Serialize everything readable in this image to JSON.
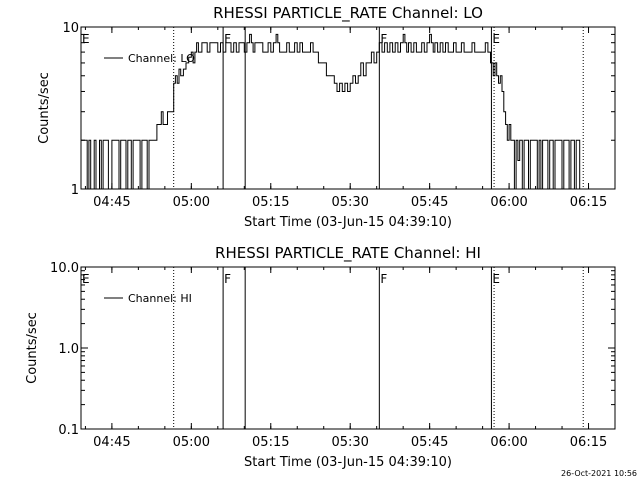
{
  "footer_timestamp": "26-Oct-2021 10:56",
  "chart_data": [
    {
      "type": "line",
      "title": "RHESSI PARTICLE_RATE Channel: LO",
      "xlabel": "Start Time (03-Jun-15 04:39:10)",
      "ylabel": "Counts/sec",
      "yscale": "log",
      "xlim": [
        "04:39:10",
        "06:20:00"
      ],
      "ylim": [
        1,
        10
      ],
      "x_ticks": [
        "04:45",
        "05:00",
        "05:15",
        "05:30",
        "05:45",
        "06:00",
        "06:15"
      ],
      "y_ticks": [
        "1",
        "10"
      ],
      "legend": {
        "placement": "top-left",
        "entries": [
          "Channel: LO"
        ]
      },
      "markers": [
        {
          "time": "04:39:10",
          "label": "E",
          "style": "solid"
        },
        {
          "time": "04:56:40",
          "label": "",
          "style": "dotted"
        },
        {
          "time": "05:06:00",
          "label": "F",
          "style": "solid"
        },
        {
          "time": "05:10:10",
          "label": "",
          "style": "solid"
        },
        {
          "time": "05:35:30",
          "label": "F",
          "style": "solid"
        },
        {
          "time": "05:56:40",
          "label": "E",
          "style": "solid"
        },
        {
          "time": "05:57:10",
          "label": "",
          "style": "dotted"
        },
        {
          "time": "06:14:00",
          "label": "",
          "style": "dotted"
        }
      ],
      "series": [
        {
          "points": [
            [
              "04:39:10",
              2
            ],
            [
              "04:40:00",
              2
            ],
            [
              "04:40:20",
              1
            ],
            [
              "04:40:40",
              2
            ],
            [
              "04:41:00",
              1
            ],
            [
              "04:41:40",
              2
            ],
            [
              "04:42:00",
              1
            ],
            [
              "04:42:40",
              2
            ],
            [
              "04:43:00",
              1
            ],
            [
              "04:43:20",
              2
            ],
            [
              "04:44:00",
              2
            ],
            [
              "04:44:20",
              1
            ],
            [
              "04:45:00",
              2
            ],
            [
              "04:46:00",
              2
            ],
            [
              "04:46:20",
              1
            ],
            [
              "04:46:40",
              2
            ],
            [
              "04:47:40",
              1
            ],
            [
              "04:48:00",
              2
            ],
            [
              "04:48:40",
              1
            ],
            [
              "04:49:00",
              2
            ],
            [
              "04:50:00",
              2
            ],
            [
              "04:50:20",
              1
            ],
            [
              "04:50:40",
              2
            ],
            [
              "04:51:40",
              1
            ],
            [
              "04:52:00",
              2
            ],
            [
              "04:53:00",
              2
            ],
            [
              "04:53:30",
              2.5
            ],
            [
              "04:54:00",
              2.5
            ],
            [
              "04:54:20",
              3
            ],
            [
              "04:54:40",
              2.5
            ],
            [
              "04:55:00",
              2.5
            ],
            [
              "04:55:30",
              3
            ],
            [
              "04:56:00",
              3
            ],
            [
              "04:56:40",
              4.5
            ],
            [
              "04:57:00",
              5
            ],
            [
              "04:57:20",
              4.5
            ],
            [
              "04:57:40",
              5.5
            ],
            [
              "04:58:00",
              5
            ],
            [
              "04:58:30",
              5.5
            ],
            [
              "04:59:00",
              6
            ],
            [
              "04:59:30",
              6.5
            ],
            [
              "05:00:00",
              7
            ],
            [
              "05:00:20",
              6
            ],
            [
              "05:00:40",
              7
            ],
            [
              "05:01:00",
              8
            ],
            [
              "05:01:20",
              7
            ],
            [
              "05:02:00",
              8
            ],
            [
              "05:02:30",
              8
            ],
            [
              "05:03:00",
              7
            ],
            [
              "05:03:30",
              8
            ],
            [
              "05:04:00",
              8
            ],
            [
              "05:04:30",
              8
            ],
            [
              "05:05:00",
              7
            ],
            [
              "05:05:30",
              8
            ],
            [
              "05:06:00",
              7
            ],
            [
              "05:06:30",
              8
            ],
            [
              "05:07:00",
              8
            ],
            [
              "05:07:30",
              7
            ],
            [
              "05:08:00",
              8
            ],
            [
              "05:08:30",
              7
            ],
            [
              "05:09:00",
              8
            ],
            [
              "05:09:30",
              8
            ],
            [
              "05:10:00",
              7
            ],
            [
              "05:10:30",
              8
            ],
            [
              "05:11:00",
              9
            ],
            [
              "05:11:20",
              8
            ],
            [
              "05:11:40",
              7
            ],
            [
              "05:12:00",
              8
            ],
            [
              "05:13:00",
              8
            ],
            [
              "05:13:30",
              7
            ],
            [
              "05:14:00",
              7
            ],
            [
              "05:14:30",
              8
            ],
            [
              "05:15:00",
              7
            ],
            [
              "05:15:30",
              8
            ],
            [
              "05:16:00",
              9
            ],
            [
              "05:16:20",
              8
            ],
            [
              "05:16:40",
              7
            ],
            [
              "05:17:00",
              7
            ],
            [
              "05:18:00",
              8
            ],
            [
              "05:18:30",
              7
            ],
            [
              "05:19:00",
              7
            ],
            [
              "05:19:30",
              8
            ],
            [
              "05:20:00",
              7
            ],
            [
              "05:20:30",
              8
            ],
            [
              "05:21:00",
              7
            ],
            [
              "05:22:00",
              7
            ],
            [
              "05:22:30",
              8
            ],
            [
              "05:23:00",
              7
            ],
            [
              "05:23:30",
              7
            ],
            [
              "05:24:00",
              6
            ],
            [
              "05:24:30",
              6
            ],
            [
              "05:25:00",
              6
            ],
            [
              "05:25:30",
              5
            ],
            [
              "05:26:00",
              5
            ],
            [
              "05:26:30",
              5
            ],
            [
              "05:27:00",
              4.5
            ],
            [
              "05:27:30",
              4
            ],
            [
              "05:28:00",
              4.5
            ],
            [
              "05:28:30",
              4
            ],
            [
              "05:29:00",
              4.5
            ],
            [
              "05:29:30",
              4
            ],
            [
              "05:30:00",
              4.5
            ],
            [
              "05:30:30",
              5
            ],
            [
              "05:31:00",
              4.5
            ],
            [
              "05:31:30",
              5
            ],
            [
              "05:32:00",
              6
            ],
            [
              "05:32:30",
              5
            ],
            [
              "05:33:00",
              6
            ],
            [
              "05:33:30",
              6
            ],
            [
              "05:34:00",
              7
            ],
            [
              "05:34:30",
              6
            ],
            [
              "05:35:00",
              7
            ],
            [
              "05:35:30",
              8
            ],
            [
              "05:36:00",
              7
            ],
            [
              "05:36:30",
              8
            ],
            [
              "05:37:00",
              7
            ],
            [
              "05:37:30",
              8
            ],
            [
              "05:38:00",
              7
            ],
            [
              "05:38:30",
              8
            ],
            [
              "05:39:00",
              7
            ],
            [
              "05:39:30",
              8
            ],
            [
              "05:40:00",
              9
            ],
            [
              "05:40:20",
              8
            ],
            [
              "05:40:40",
              7
            ],
            [
              "05:41:00",
              8
            ],
            [
              "05:41:30",
              7
            ],
            [
              "05:42:00",
              8
            ],
            [
              "05:42:30",
              7
            ],
            [
              "05:43:00",
              7
            ],
            [
              "05:43:30",
              8
            ],
            [
              "05:44:00",
              7
            ],
            [
              "05:44:30",
              8
            ],
            [
              "05:45:00",
              9
            ],
            [
              "05:45:20",
              8
            ],
            [
              "05:45:40",
              7
            ],
            [
              "05:46:00",
              8
            ],
            [
              "05:46:30",
              7
            ],
            [
              "05:47:00",
              8
            ],
            [
              "05:47:30",
              7
            ],
            [
              "05:48:00",
              8
            ],
            [
              "05:48:30",
              7
            ],
            [
              "05:49:00",
              7
            ],
            [
              "05:49:30",
              8
            ],
            [
              "05:50:00",
              7
            ],
            [
              "05:50:30",
              7
            ],
            [
              "05:51:00",
              8
            ],
            [
              "05:51:30",
              7
            ],
            [
              "05:52:00",
              7
            ],
            [
              "05:52:30",
              7
            ],
            [
              "05:53:00",
              8
            ],
            [
              "05:53:30",
              7
            ],
            [
              "05:54:00",
              7
            ],
            [
              "05:55:00",
              7
            ],
            [
              "05:55:30",
              8
            ],
            [
              "05:56:00",
              7
            ],
            [
              "05:56:30",
              6
            ],
            [
              "05:57:00",
              5
            ],
            [
              "05:57:20",
              6
            ],
            [
              "05:57:40",
              5
            ],
            [
              "05:58:00",
              4.5
            ],
            [
              "05:58:20",
              5
            ],
            [
              "05:58:40",
              4
            ],
            [
              "05:59:00",
              3
            ],
            [
              "05:59:20",
              2.5
            ],
            [
              "05:59:40",
              2
            ],
            [
              "06:00:00",
              2.5
            ],
            [
              "06:00:20",
              2
            ],
            [
              "06:00:40",
              2
            ],
            [
              "06:01:00",
              1
            ],
            [
              "06:01:20",
              2
            ],
            [
              "06:01:40",
              1.5
            ],
            [
              "06:02:00",
              2
            ],
            [
              "06:02:30",
              1
            ],
            [
              "06:02:50",
              2
            ],
            [
              "06:03:20",
              2
            ],
            [
              "06:03:40",
              1
            ],
            [
              "06:04:00",
              2
            ],
            [
              "06:05:00",
              2
            ],
            [
              "06:05:20",
              1
            ],
            [
              "06:05:40",
              2
            ],
            [
              "06:06:00",
              1
            ],
            [
              "06:06:20",
              2
            ],
            [
              "06:07:00",
              2
            ],
            [
              "06:07:20",
              1
            ],
            [
              "06:07:40",
              2
            ],
            [
              "06:08:00",
              2
            ],
            [
              "06:08:20",
              1
            ],
            [
              "06:08:40",
              2
            ],
            [
              "06:09:40",
              2
            ],
            [
              "06:10:00",
              1
            ],
            [
              "06:10:20",
              2
            ],
            [
              "06:11:00",
              2
            ],
            [
              "06:11:20",
              1
            ],
            [
              "06:11:40",
              2
            ],
            [
              "06:12:00",
              2
            ],
            [
              "06:12:20",
              1
            ],
            [
              "06:12:40",
              2
            ],
            [
              "06:13:10",
              2
            ],
            [
              "06:13:20",
              1
            ]
          ]
        }
      ]
    },
    {
      "type": "line",
      "title": "RHESSI PARTICLE_RATE Channel: HI",
      "xlabel": "Start Time (03-Jun-15 04:39:10)",
      "ylabel": "Counts/sec",
      "yscale": "log",
      "xlim": [
        "04:39:10",
        "06:20:00"
      ],
      "ylim": [
        0.1,
        10
      ],
      "x_ticks": [
        "04:45",
        "05:00",
        "05:15",
        "05:30",
        "05:45",
        "06:00",
        "06:15"
      ],
      "y_ticks": [
        "0.1",
        "1.0",
        "10.0"
      ],
      "legend": {
        "placement": "top-left",
        "entries": [
          "Channel: HI"
        ]
      },
      "markers": [
        {
          "time": "04:39:10",
          "label": "E",
          "style": "solid"
        },
        {
          "time": "04:56:40",
          "label": "",
          "style": "dotted"
        },
        {
          "time": "05:06:00",
          "label": "F",
          "style": "solid"
        },
        {
          "time": "05:10:10",
          "label": "",
          "style": "solid"
        },
        {
          "time": "05:35:30",
          "label": "F",
          "style": "solid"
        },
        {
          "time": "05:56:40",
          "label": "E",
          "style": "solid"
        },
        {
          "time": "05:57:10",
          "label": "",
          "style": "dotted"
        },
        {
          "time": "06:14:00",
          "label": "",
          "style": "dotted"
        }
      ],
      "series": [
        {
          "points": []
        }
      ]
    }
  ]
}
